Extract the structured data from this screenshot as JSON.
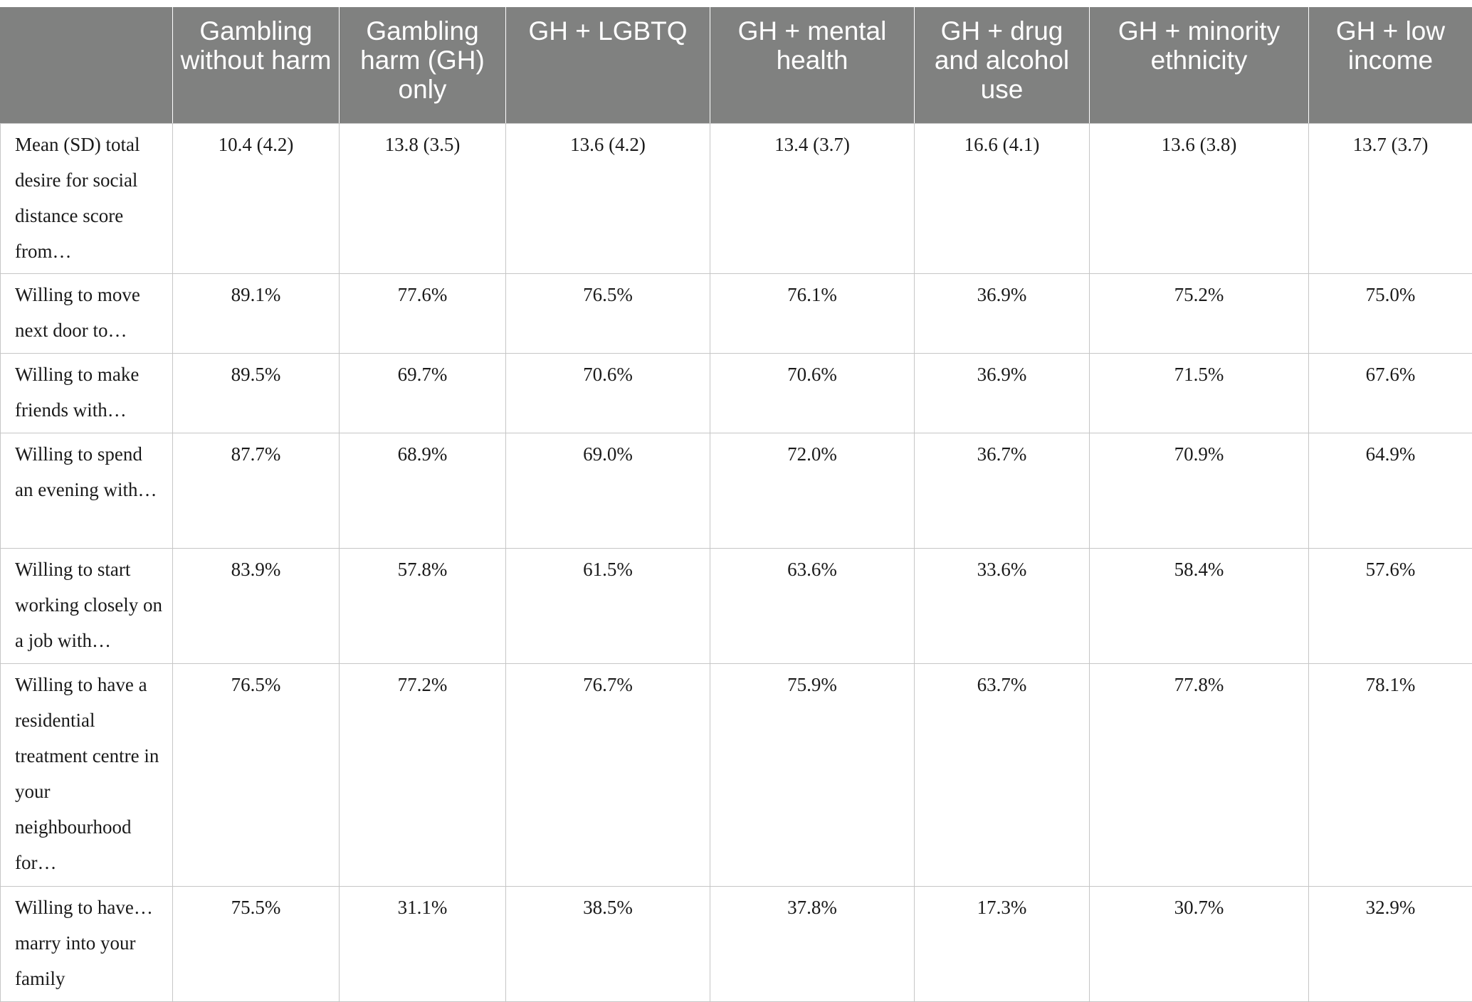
{
  "table": {
    "columns": [
      "",
      "Gambling without harm",
      "Gambling harm (GH) only",
      "GH + LGBTQ",
      "GH + mental health",
      "GH + drug and alcohol use",
      "GH + minority ethnicity",
      "GH + low income"
    ],
    "rows": [
      {
        "label": "Mean (SD) total desire for social distance score from…",
        "values": [
          "10.4 (4.2)",
          "13.8 (3.5)",
          "13.6 (4.2)",
          "13.4 (3.7)",
          "16.6 (4.1)",
          "13.6 (3.8)",
          "13.7 (3.7)"
        ]
      },
      {
        "label": "Willing to move next door to…",
        "values": [
          "89.1%",
          "77.6%",
          "76.5%",
          "76.1%",
          "36.9%",
          "75.2%",
          "75.0%"
        ]
      },
      {
        "label": "Willing to make friends with…",
        "values": [
          "89.5%",
          "69.7%",
          "70.6%",
          "70.6%",
          "36.9%",
          "71.5%",
          "67.6%"
        ]
      },
      {
        "label": "Willing to spend an evening with…",
        "values": [
          "87.7%",
          "68.9%",
          "69.0%",
          "72.0%",
          "36.7%",
          "70.9%",
          "64.9%"
        ]
      },
      {
        "label": "Willing to start working closely on a job with…",
        "values": [
          "83.9%",
          "57.8%",
          "61.5%",
          "63.6%",
          "33.6%",
          "58.4%",
          "57.6%"
        ]
      },
      {
        "label": "Willing to have a residential treatment centre in your neighbourhood for…",
        "values": [
          "76.5%",
          "77.2%",
          "76.7%",
          "75.9%",
          "63.7%",
          "77.8%",
          "78.1%"
        ]
      },
      {
        "label": "Willing to have… marry into your family",
        "values": [
          "75.5%",
          "31.1%",
          "38.5%",
          "37.8%",
          "17.3%",
          "30.7%",
          "32.9%"
        ]
      }
    ]
  }
}
